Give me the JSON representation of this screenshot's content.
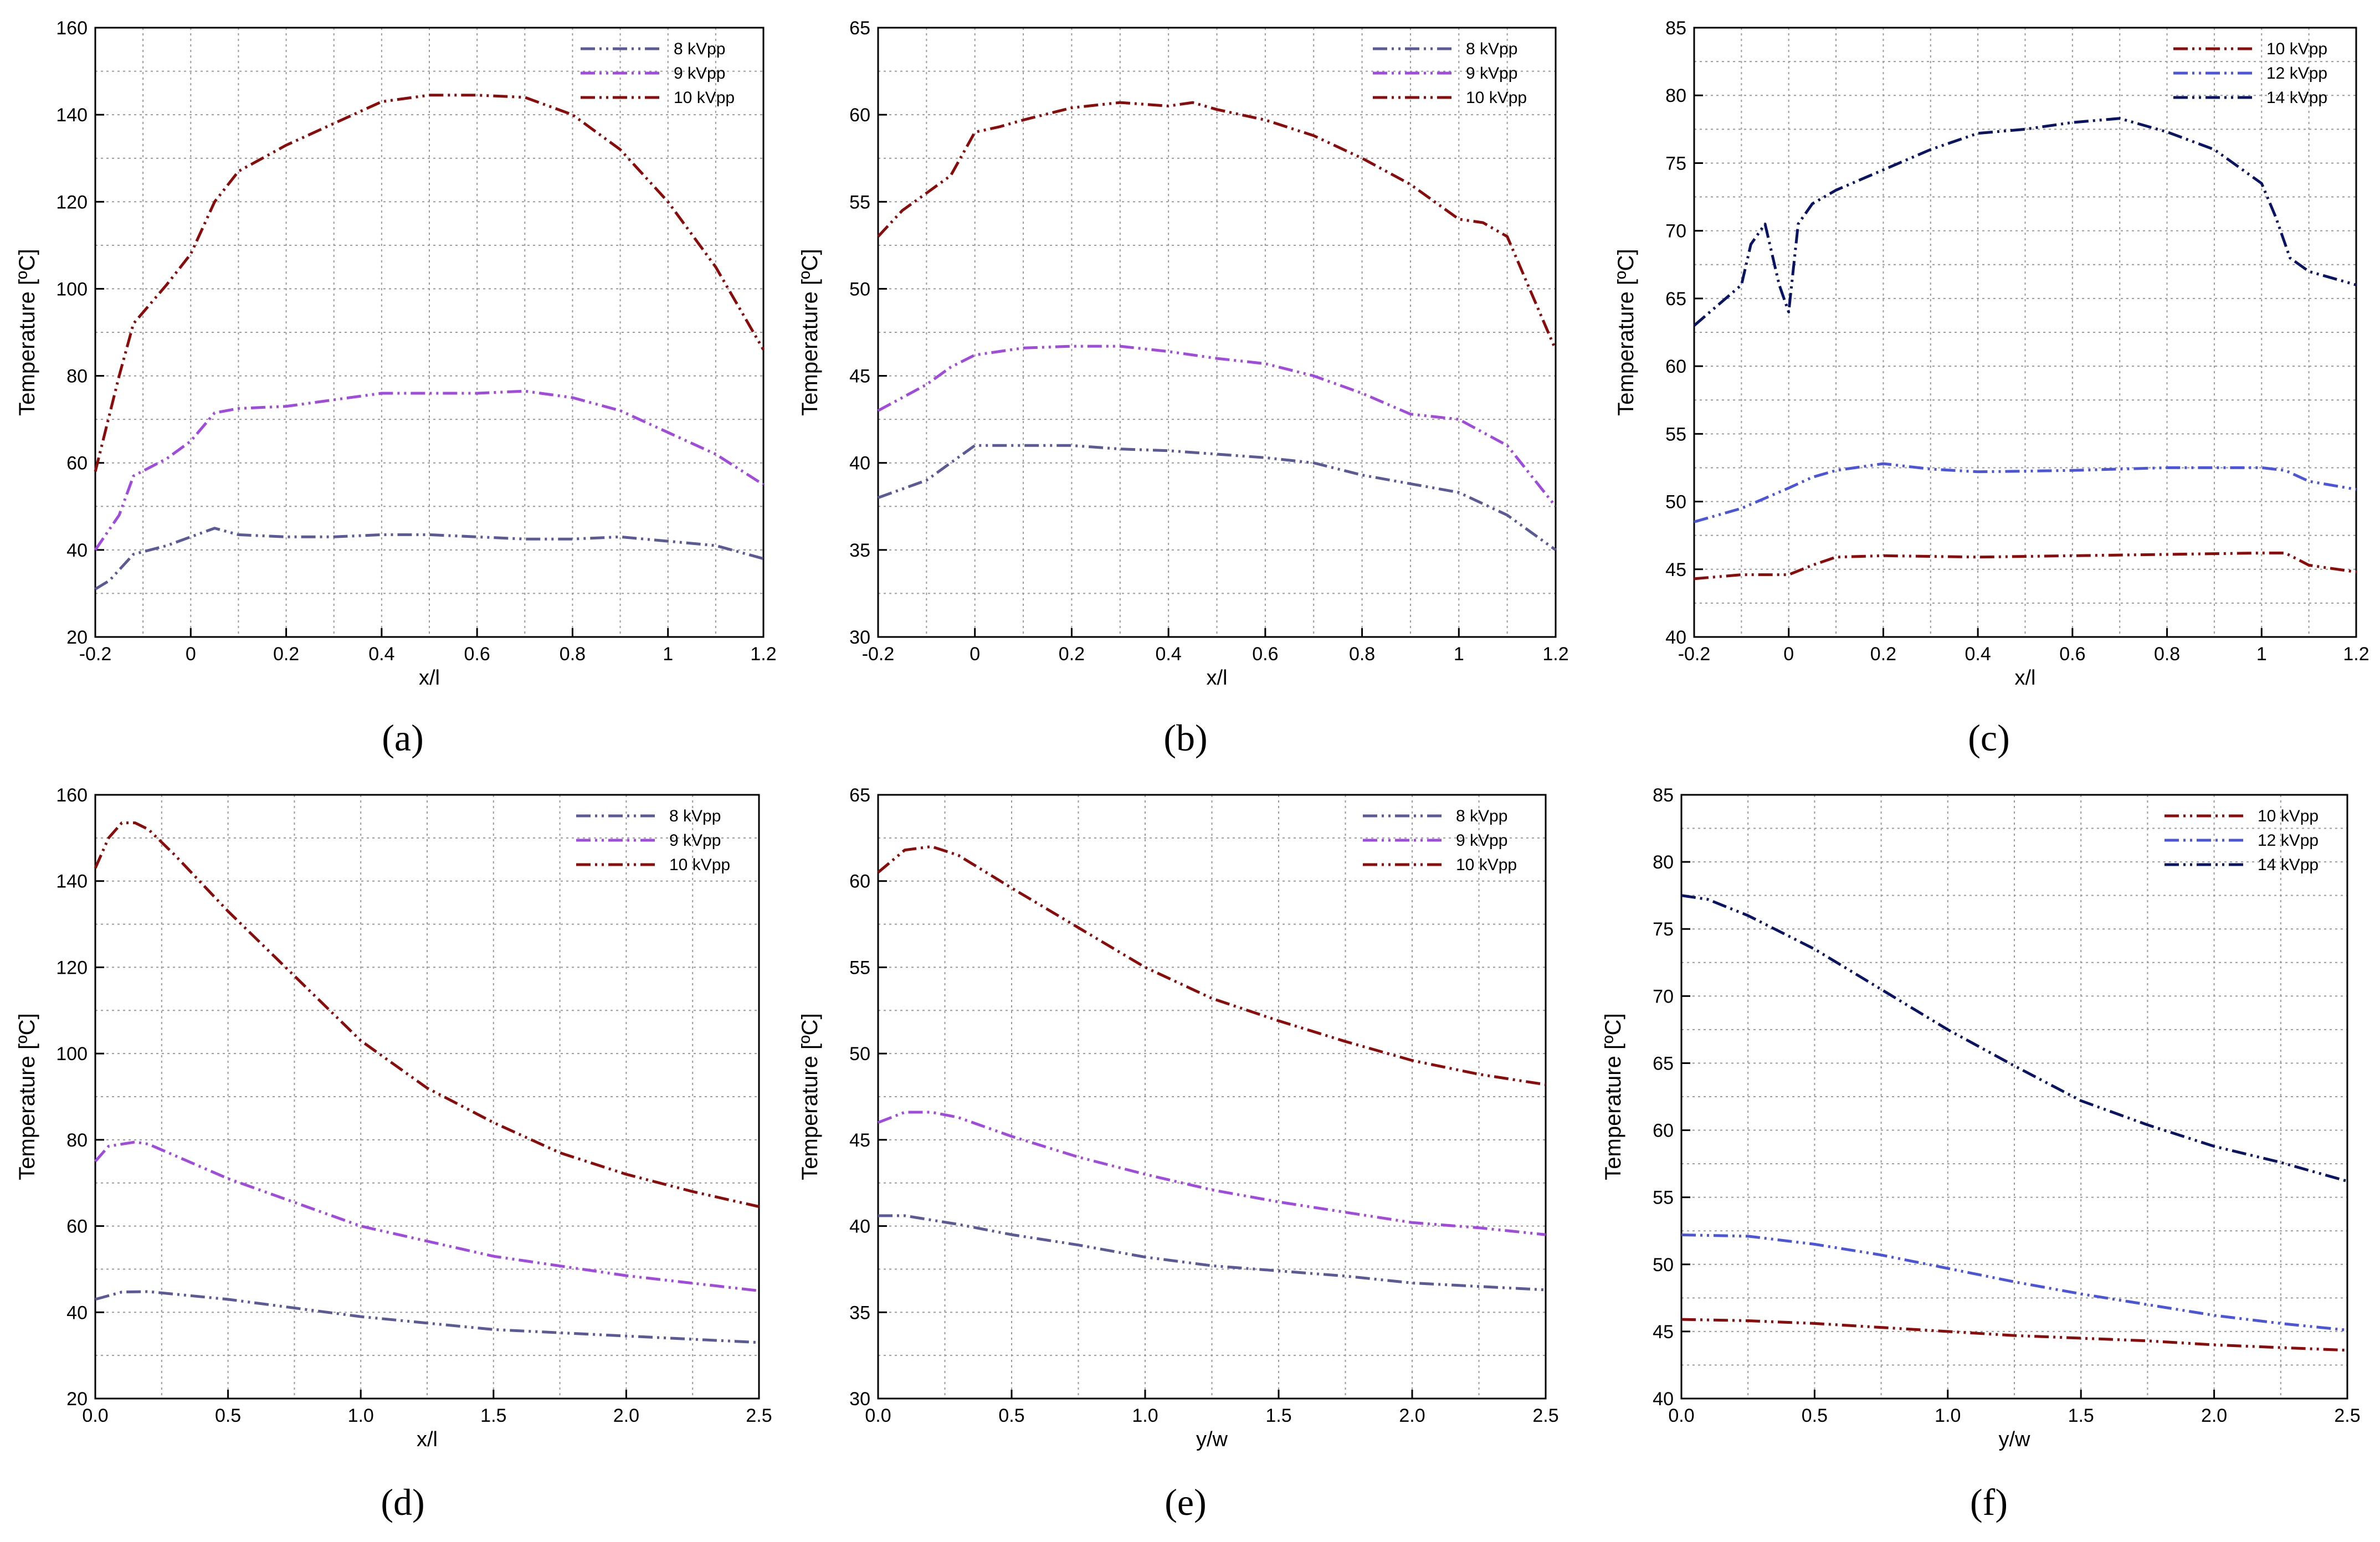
{
  "figure": {
    "captions": [
      "(a)",
      "(b)",
      "(c)",
      "(d)",
      "(e)",
      "(f)"
    ]
  },
  "colors": {
    "blue_8": "#5a5a96",
    "violet_9": "#a04ae0",
    "darkred_10": "#8b0a0a",
    "blue_12": "#4b55dc",
    "navy_14": "#0a1464",
    "grid": "#9a9a9a"
  },
  "chart_data": [
    {
      "type": "line",
      "title": "",
      "caption": "(a)",
      "xlabel": "x/l",
      "ylabel": "Temperature [ºC]",
      "xlim": [
        -0.2,
        1.2
      ],
      "ylim": [
        20,
        160
      ],
      "xticks": [
        -0.2,
        0,
        0.2,
        0.4,
        0.6,
        0.8,
        1,
        1.2
      ],
      "xtick_labels": [
        "-0.2",
        "0",
        "0.2",
        "0.4",
        "0.6",
        "0.8",
        "1",
        "1.2"
      ],
      "yticks": [
        20,
        40,
        60,
        80,
        100,
        120,
        140,
        160
      ],
      "ytick_labels": [
        "20",
        "40",
        "60",
        "80",
        "100",
        "120",
        "140",
        "160"
      ],
      "grid": true,
      "legend_position": "top-right",
      "series": [
        {
          "name": "8 kVpp",
          "color": "#5a5a96",
          "x": [
            -0.2,
            -0.17,
            -0.12,
            -0.05,
            0,
            0.05,
            0.1,
            0.2,
            0.3,
            0.4,
            0.5,
            0.6,
            0.7,
            0.8,
            0.9,
            1.0,
            1.1,
            1.2
          ],
          "y": [
            31,
            33,
            39,
            41,
            43,
            45,
            43.5,
            43,
            43,
            43.5,
            43.5,
            43,
            42.5,
            42.5,
            43,
            42,
            41,
            38
          ]
        },
        {
          "name": "9 kVpp",
          "color": "#a04ae0",
          "x": [
            -0.2,
            -0.15,
            -0.12,
            -0.05,
            0,
            0.05,
            0.1,
            0.2,
            0.3,
            0.4,
            0.5,
            0.6,
            0.7,
            0.8,
            0.9,
            1.0,
            1.1,
            1.2
          ],
          "y": [
            40,
            48,
            57,
            61,
            65,
            71.5,
            72.5,
            73,
            74.5,
            76,
            76,
            76,
            76.5,
            75,
            72,
            67,
            62,
            55
          ]
        },
        {
          "name": "10 kVpp",
          "color": "#8b0a0a",
          "x": [
            -0.2,
            -0.15,
            -0.12,
            -0.05,
            0,
            0.05,
            0.1,
            0.2,
            0.3,
            0.4,
            0.5,
            0.6,
            0.7,
            0.8,
            0.9,
            1.0,
            1.1,
            1.2
          ],
          "y": [
            58,
            80,
            92,
            101,
            108,
            120,
            127,
            133,
            138,
            143,
            144.5,
            144.5,
            144,
            140,
            132,
            120,
            105,
            86
          ]
        }
      ]
    },
    {
      "type": "line",
      "title": "",
      "caption": "(b)",
      "xlabel": "x/l",
      "ylabel": "Temperature [ºC]",
      "xlim": [
        -0.2,
        1.2
      ],
      "ylim": [
        30,
        65
      ],
      "xticks": [
        -0.2,
        0,
        0.2,
        0.4,
        0.6,
        0.8,
        1,
        1.2
      ],
      "xtick_labels": [
        "-0.2",
        "0",
        "0.2",
        "0.4",
        "0.6",
        "0.8",
        "1",
        "1.2"
      ],
      "yticks": [
        30,
        35,
        40,
        45,
        50,
        55,
        60,
        65
      ],
      "ytick_labels": [
        "30",
        "35",
        "40",
        "45",
        "50",
        "55",
        "60",
        "65"
      ],
      "grid": true,
      "legend_position": "top-right",
      "series": [
        {
          "name": "8 kVpp",
          "color": "#5a5a96",
          "x": [
            -0.2,
            -0.1,
            -0.05,
            0,
            0.05,
            0.1,
            0.2,
            0.3,
            0.4,
            0.5,
            0.6,
            0.7,
            0.8,
            0.9,
            1.0,
            1.1,
            1.2
          ],
          "y": [
            38,
            39,
            40,
            41,
            41,
            41,
            41,
            40.8,
            40.7,
            40.5,
            40.3,
            40,
            39.3,
            38.8,
            38.3,
            37,
            35
          ]
        },
        {
          "name": "9 kVpp",
          "color": "#a04ae0",
          "x": [
            -0.2,
            -0.1,
            -0.05,
            0,
            0.05,
            0.1,
            0.2,
            0.3,
            0.4,
            0.5,
            0.6,
            0.7,
            0.8,
            0.9,
            1.0,
            1.1,
            1.2
          ],
          "y": [
            43,
            44.5,
            45.5,
            46.2,
            46.4,
            46.6,
            46.7,
            46.7,
            46.4,
            46,
            45.7,
            45,
            44,
            42.8,
            42.5,
            41,
            37.5
          ]
        },
        {
          "name": "10 kVpp",
          "color": "#8b0a0a",
          "x": [
            -0.2,
            -0.15,
            -0.1,
            -0.05,
            0,
            0.05,
            0.1,
            0.2,
            0.3,
            0.4,
            0.45,
            0.5,
            0.6,
            0.7,
            0.8,
            0.9,
            1.0,
            1.05,
            1.1,
            1.2
          ],
          "y": [
            53,
            54.5,
            55.5,
            56.5,
            59,
            59.3,
            59.7,
            60.4,
            60.7,
            60.5,
            60.7,
            60.3,
            59.7,
            58.8,
            57.5,
            56,
            54,
            53.8,
            53,
            46.5
          ]
        }
      ]
    },
    {
      "type": "line",
      "title": "",
      "caption": "(c)",
      "xlabel": "x/l",
      "ylabel": "Temperature [ºC]",
      "xlim": [
        -0.2,
        1.2
      ],
      "ylim": [
        40,
        85
      ],
      "xticks": [
        -0.2,
        0,
        0.2,
        0.4,
        0.6,
        0.8,
        1,
        1.2
      ],
      "xtick_labels": [
        "-0.2",
        "0",
        "0.2",
        "0.4",
        "0.6",
        "0.8",
        "1",
        "1.2"
      ],
      "yticks": [
        40,
        45,
        50,
        55,
        60,
        65,
        70,
        75,
        80,
        85
      ],
      "ytick_labels": [
        "40",
        "45",
        "50",
        "55",
        "60",
        "65",
        "70",
        "75",
        "80",
        "85"
      ],
      "grid": true,
      "legend_position": "top-right",
      "series": [
        {
          "name": "10 kVpp",
          "color": "#8b0a0a",
          "x": [
            -0.2,
            -0.1,
            0,
            0.05,
            0.1,
            0.2,
            0.4,
            0.6,
            0.8,
            1.0,
            1.05,
            1.1,
            1.2
          ],
          "y": [
            44.3,
            44.6,
            44.6,
            45.3,
            45.9,
            46,
            45.9,
            46,
            46.1,
            46.2,
            46.2,
            45.3,
            44.8
          ]
        },
        {
          "name": "12 kVpp",
          "color": "#4b55dc",
          "x": [
            -0.2,
            -0.1,
            0,
            0.05,
            0.1,
            0.2,
            0.3,
            0.4,
            0.6,
            0.8,
            1.0,
            1.05,
            1.1,
            1.2
          ],
          "y": [
            48.5,
            49.5,
            51,
            51.8,
            52.3,
            52.8,
            52.4,
            52.2,
            52.3,
            52.5,
            52.5,
            52.3,
            51.5,
            50.9
          ]
        },
        {
          "name": "14 kVpp",
          "color": "#0a1464",
          "x": [
            -0.2,
            -0.15,
            -0.1,
            -0.08,
            -0.05,
            -0.02,
            0,
            0.02,
            0.05,
            0.1,
            0.2,
            0.3,
            0.4,
            0.5,
            0.6,
            0.7,
            0.8,
            0.9,
            1.0,
            1.03,
            1.06,
            1.1,
            1.2
          ],
          "y": [
            63,
            64.5,
            66,
            69,
            70.5,
            66,
            64,
            70.5,
            72,
            73,
            74.5,
            76,
            77.2,
            77.5,
            78,
            78.3,
            77.3,
            76,
            73.5,
            71,
            68,
            67,
            66
          ]
        }
      ]
    },
    {
      "type": "line",
      "title": "",
      "caption": "(d)",
      "xlabel": "x/l",
      "ylabel": "Temperature [ºC]",
      "xlim": [
        0,
        2.5
      ],
      "ylim": [
        20,
        160
      ],
      "xticks": [
        0,
        0.5,
        1,
        1.5,
        2,
        2.5
      ],
      "xtick_labels": [
        "0.0",
        "0.5",
        "1.0",
        "1.5",
        "2.0",
        "2.5"
      ],
      "yticks": [
        20,
        40,
        60,
        80,
        100,
        120,
        140,
        160
      ],
      "ytick_labels": [
        "20",
        "40",
        "60",
        "80",
        "100",
        "120",
        "140",
        "160"
      ],
      "grid": true,
      "legend_position": "top-right",
      "series": [
        {
          "name": "8 kVpp",
          "color": "#5a5a96",
          "x": [
            0,
            0.1,
            0.2,
            0.5,
            1.0,
            1.5,
            2.0,
            2.5
          ],
          "y": [
            43,
            44.7,
            44.8,
            43,
            39,
            36,
            34.5,
            33
          ]
        },
        {
          "name": "9 kVpp",
          "color": "#a04ae0",
          "x": [
            0,
            0.05,
            0.15,
            0.2,
            0.5,
            1.0,
            1.5,
            2.0,
            2.5
          ],
          "y": [
            75,
            78.5,
            79.5,
            79,
            71,
            60,
            53,
            48.5,
            45
          ]
        },
        {
          "name": "10 kVpp",
          "color": "#8b0a0a",
          "x": [
            0,
            0.05,
            0.1,
            0.15,
            0.2,
            0.3,
            0.5,
            0.75,
            1.0,
            1.25,
            1.5,
            1.75,
            2.0,
            2.25,
            2.5
          ],
          "y": [
            143,
            150,
            153.5,
            153.5,
            152,
            146,
            133,
            118,
            103,
            92,
            84,
            77,
            72,
            68,
            64.5
          ]
        }
      ]
    },
    {
      "type": "line",
      "title": "",
      "caption": "(e)",
      "xlabel": "y/w",
      "ylabel": "Temperature [ºC]",
      "xlim": [
        0,
        2.5
      ],
      "ylim": [
        30,
        65
      ],
      "xticks": [
        0,
        0.5,
        1,
        1.5,
        2,
        2.5
      ],
      "xtick_labels": [
        "0.0",
        "0.5",
        "1.0",
        "1.5",
        "2.0",
        "2.5"
      ],
      "yticks": [
        30,
        35,
        40,
        45,
        50,
        55,
        60,
        65
      ],
      "ytick_labels": [
        "30",
        "35",
        "40",
        "45",
        "50",
        "55",
        "60",
        "65"
      ],
      "grid": true,
      "legend_position": "top-right",
      "series": [
        {
          "name": "8 kVpp",
          "color": "#5a5a96",
          "x": [
            0,
            0.1,
            0.3,
            0.5,
            0.75,
            1.0,
            1.25,
            1.5,
            1.75,
            2.0,
            2.25,
            2.5
          ],
          "y": [
            40.6,
            40.6,
            40.1,
            39.5,
            38.9,
            38.2,
            37.7,
            37.4,
            37.1,
            36.7,
            36.5,
            36.3
          ]
        },
        {
          "name": "9 kVpp",
          "color": "#a04ae0",
          "x": [
            0,
            0.1,
            0.2,
            0.3,
            0.5,
            0.75,
            1.0,
            1.25,
            1.5,
            1.75,
            2.0,
            2.25,
            2.5
          ],
          "y": [
            46,
            46.6,
            46.6,
            46.3,
            45.2,
            44,
            43,
            42.1,
            41.4,
            40.8,
            40.2,
            39.9,
            39.5
          ]
        },
        {
          "name": "10 kVpp",
          "color": "#8b0a0a",
          "x": [
            0,
            0.1,
            0.2,
            0.3,
            0.5,
            0.75,
            1.0,
            1.25,
            1.5,
            1.75,
            2.0,
            2.25,
            2.5
          ],
          "y": [
            60.5,
            61.8,
            62,
            61.5,
            59.6,
            57.3,
            55,
            53.2,
            51.9,
            50.7,
            49.6,
            48.8,
            48.2
          ]
        }
      ]
    },
    {
      "type": "line",
      "title": "",
      "caption": "(f)",
      "xlabel": "y/w",
      "ylabel": "Temperature [ºC]",
      "xlim": [
        0,
        2.5
      ],
      "ylim": [
        40,
        85
      ],
      "xticks": [
        0,
        0.5,
        1,
        1.5,
        2,
        2.5
      ],
      "xtick_labels": [
        "0.0",
        "0.5",
        "1.0",
        "1.5",
        "2.0",
        "2.5"
      ],
      "yticks": [
        40,
        45,
        50,
        55,
        60,
        65,
        70,
        75,
        80,
        85
      ],
      "ytick_labels": [
        "40",
        "45",
        "50",
        "55",
        "60",
        "65",
        "70",
        "75",
        "80",
        "85"
      ],
      "grid": true,
      "legend_position": "top-right",
      "series": [
        {
          "name": "10 kVpp",
          "color": "#8b0a0a",
          "x": [
            0,
            0.25,
            0.5,
            0.75,
            1.0,
            1.25,
            1.5,
            1.75,
            2.0,
            2.25,
            2.5
          ],
          "y": [
            45.9,
            45.8,
            45.6,
            45.3,
            45,
            44.7,
            44.5,
            44.3,
            44,
            43.8,
            43.6
          ]
        },
        {
          "name": "12 kVpp",
          "color": "#4b55dc",
          "x": [
            0,
            0.25,
            0.5,
            0.75,
            1.0,
            1.25,
            1.5,
            1.75,
            2.0,
            2.25,
            2.5
          ],
          "y": [
            52.2,
            52.1,
            51.5,
            50.7,
            49.7,
            48.7,
            47.8,
            47,
            46.2,
            45.6,
            45.1
          ]
        },
        {
          "name": "14 kVpp",
          "color": "#0a1464",
          "x": [
            0,
            0.1,
            0.25,
            0.5,
            0.75,
            1.0,
            1.25,
            1.5,
            1.75,
            2.0,
            2.25,
            2.5
          ],
          "y": [
            77.5,
            77.2,
            76,
            73.5,
            70.5,
            67.5,
            64.8,
            62.2,
            60.4,
            58.8,
            57.6,
            56.2
          ]
        }
      ]
    }
  ]
}
